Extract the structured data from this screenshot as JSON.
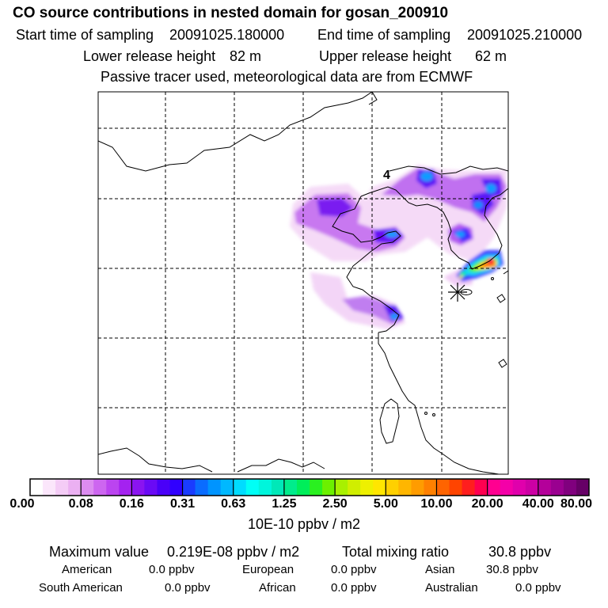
{
  "header": {
    "title": "CO  source contributions in nested domain for gosan_200910",
    "start_label": "Start time of sampling",
    "start_value": "20091025.180000",
    "end_label": "End time of sampling",
    "end_value": "20091025.210000",
    "lower_label": "Lower release height",
    "lower_value": "82 m",
    "upper_label": "Upper release height",
    "upper_value": "62 m",
    "note": "Passive tracer used, meteorological data are from ECMWF"
  },
  "map": {
    "day_marker": "4",
    "receptor_marker": "asterisk"
  },
  "colorbar": {
    "unit": "10E-10 ppbv / m2",
    "labels": [
      "0.00",
      "0.08",
      "0.16",
      "0.31",
      "0.63",
      "1.25",
      "2.50",
      "5.00",
      "10.00",
      "20.00",
      "40.00",
      "80.00"
    ],
    "colors": [
      "#ffffff",
      "#fbe6fb",
      "#f4ccf6",
      "#ebb0f2",
      "#dc8cf0",
      "#cd66f0",
      "#bb44f0",
      "#a422f0",
      "#8a14f0",
      "#6a0af5",
      "#4a00f8",
      "#3000ff",
      "#1a3cff",
      "#0a6cff",
      "#0094ff",
      "#00b8ff",
      "#00dcff",
      "#00fff6",
      "#00f5dc",
      "#00e8b8",
      "#00ec8c",
      "#00ee5a",
      "#2af020",
      "#6cf000",
      "#a8f000",
      "#d0ee00",
      "#eef000",
      "#ffe600",
      "#ffd000",
      "#ffb600",
      "#ff9c00",
      "#ff8000",
      "#ff6400",
      "#ff4400",
      "#ff1e1e",
      "#ff0050",
      "#ff0090",
      "#f400a8",
      "#e000ac",
      "#cc00a4",
      "#b4009a",
      "#9a0090",
      "#80007e",
      "#660066"
    ]
  },
  "stats": {
    "max_label": "Maximum value",
    "max_value": "0.219E-08 ppbv / m2",
    "total_label": "Total mixing ratio",
    "total_value": "30.8 ppbv",
    "regions": [
      {
        "name": "American",
        "value": "0.0 ppbv"
      },
      {
        "name": "European",
        "value": "0.0 ppbv"
      },
      {
        "name": "Asian",
        "value": "30.8 ppbv"
      },
      {
        "name": "South American",
        "value": "0.0 ppbv"
      },
      {
        "name": "African",
        "value": "0.0 ppbv"
      },
      {
        "name": "Australian",
        "value": "0.0 ppbv"
      }
    ]
  }
}
